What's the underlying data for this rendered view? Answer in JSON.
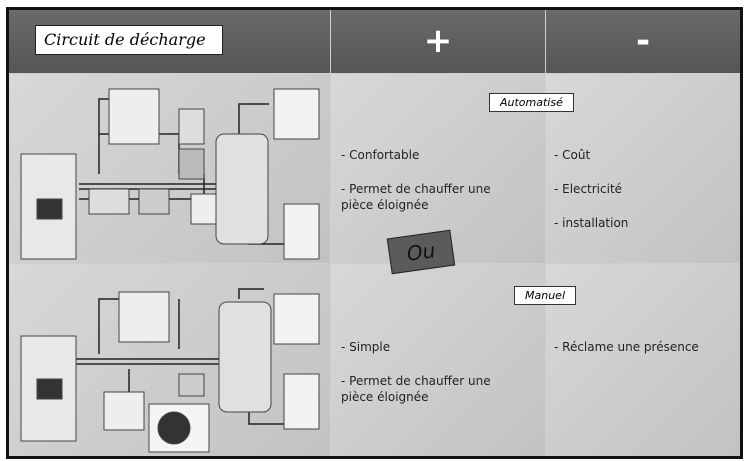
{
  "header": {
    "title": "Circuit de décharge",
    "pros": "+",
    "cons": "-"
  },
  "rows": [
    {
      "label": "Automatisé",
      "pros": [
        "- Confortable",
        "- Permet de chauffer une pièce éloignée"
      ],
      "cons": [
        "- Coût",
        "- Electricité",
        "- installation"
      ]
    },
    {
      "label": "Manuel",
      "pros": [
        "- Simple",
        "- Permet de chauffer une pièce éloignée"
      ],
      "cons": [
        "- Réclame une présence"
      ]
    }
  ],
  "separator": "Ou"
}
